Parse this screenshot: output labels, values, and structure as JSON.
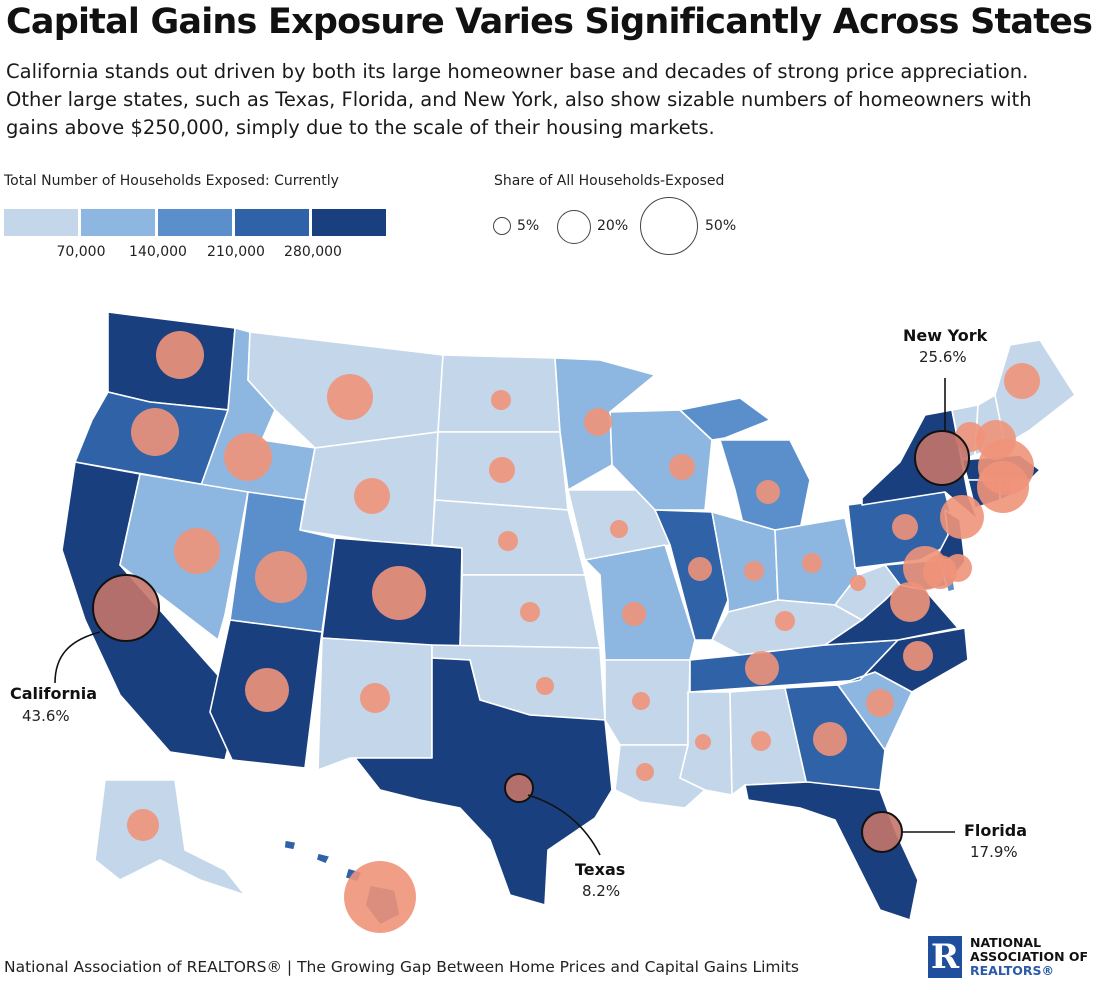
{
  "title": "Capital Gains Exposure Varies Significantly Across States",
  "subtitle": "California stands out driven by both its large homeowner base and decades of strong  price  appreciation. Other large states, such as Texas, Florida, and New York, also show sizable numbers of homeowners with gains above $250,000, simply due to the scale of their housing markets.",
  "color_legend": {
    "title": "Total Number of Households Exposed: Currently",
    "colors": [
      "#c3d6ea",
      "#8db7e0",
      "#5a8fcc",
      "#2f62a6",
      "#1a3f7e"
    ],
    "ticks": [
      "70,000",
      "140,000",
      "210,000",
      "280,000"
    ]
  },
  "size_legend": {
    "title": "Share of All Households-Exposed",
    "items": [
      {
        "label": "5%",
        "value": 5
      },
      {
        "label": "20%",
        "value": 20
      },
      {
        "label": "50%",
        "value": 50
      }
    ]
  },
  "map_colors": {
    "bubble": "#f0937a",
    "bubble_highlight": "#c4746a",
    "state_border": "#ffffff",
    "callout_line": "#111111"
  },
  "callouts": [
    {
      "state": "California",
      "share": "43.6%"
    },
    {
      "state": "New York",
      "share": "25.6%"
    },
    {
      "state": "Texas",
      "share": "8.2%"
    },
    {
      "state": "Florida",
      "share": "17.9%"
    }
  ],
  "source": "National Association of REALTORS® | The Growing Gap Between Home Prices and Capital Gains Limits",
  "logo": {
    "line1": "NATIONAL",
    "line2": "ASSOCIATION OF",
    "line3": "REALTORS®",
    "mark": "R"
  }
}
